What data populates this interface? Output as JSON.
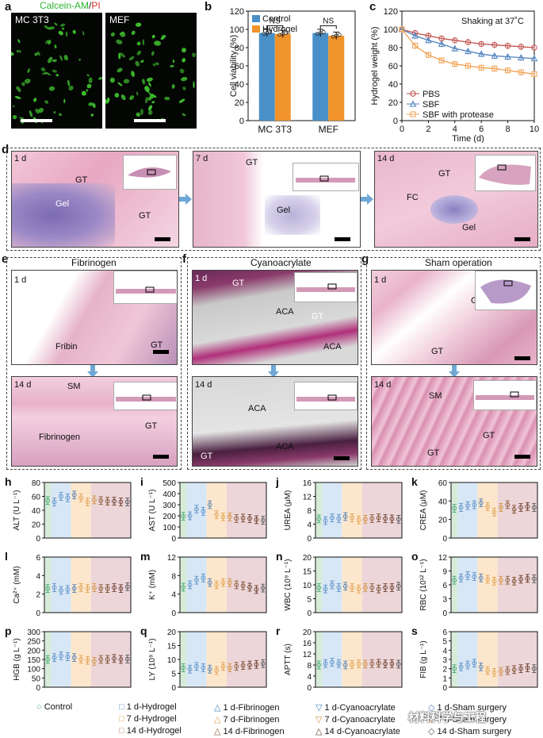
{
  "panels": {
    "a": {
      "label": "a",
      "title_left": "Calcein-AM",
      "title_sep": "/",
      "title_right": "PI",
      "img1": "MC 3T3",
      "img2": "MEF"
    },
    "b": {
      "label": "b"
    },
    "c": {
      "label": "c"
    },
    "d": {
      "label": "d",
      "img1": {
        "day": "1 d",
        "labels": [
          "GT",
          "Gel",
          "GT"
        ]
      },
      "img2": {
        "day": "7 d",
        "labels": [
          "GT",
          "Gel"
        ]
      },
      "img3": {
        "day": "14 d",
        "labels": [
          "GT",
          "FC",
          "Gel"
        ]
      }
    },
    "e": {
      "label": "e",
      "title": "Fibrinogen",
      "top": {
        "day": "1 d",
        "labels": [
          "Fribin",
          "GT"
        ]
      },
      "bottom": {
        "day": "14 d",
        "labels": [
          "SM",
          "Fibrinogen",
          "GT"
        ]
      }
    },
    "f": {
      "label": "f",
      "title": "Cyanoacrylate",
      "top": {
        "day": "1 d",
        "labels": [
          "GT",
          "ACA",
          "GT",
          "ACA"
        ]
      },
      "bottom": {
        "day": "14 d",
        "labels": [
          "ACA",
          "GT",
          "ACA"
        ]
      }
    },
    "g": {
      "label": "g",
      "title": "Sham operation",
      "top": {
        "day": "1 d",
        "labels": [
          "GT",
          "GT"
        ]
      },
      "bottom": {
        "day": "14 d",
        "labels": [
          "SM",
          "GT",
          "GT"
        ]
      }
    }
  },
  "chart_data": [
    {
      "id": "b",
      "type": "bar",
      "categories": [
        "MC 3T3",
        "MEF"
      ],
      "series": [
        {
          "name": "Control",
          "color": "#4a90c8",
          "values": [
            96,
            96
          ]
        },
        {
          "name": "Hydrogel",
          "color": "#f0932b",
          "values": [
            95,
            93
          ]
        }
      ],
      "ylabel": "Cell viability (%)",
      "ylim": [
        0,
        120
      ],
      "yticks": [
        0,
        20,
        40,
        60,
        80,
        100,
        120
      ],
      "annotations": [
        "NS",
        "NS"
      ],
      "legend": "top-left"
    },
    {
      "id": "c",
      "type": "line",
      "title": "Shaking at 37˚C",
      "x": [
        0,
        1,
        2,
        3,
        4,
        5,
        6,
        7,
        8,
        9,
        10
      ],
      "series": [
        {
          "name": "PBS",
          "color": "#c0504d",
          "marker": "circle",
          "values": [
            100,
            96,
            93,
            90,
            88,
            86,
            84,
            83,
            82,
            81,
            80
          ]
        },
        {
          "name": "SBF",
          "color": "#4f81bd",
          "marker": "triangle",
          "values": [
            100,
            93,
            88,
            84,
            79,
            76,
            73,
            71,
            70,
            69,
            68
          ]
        },
        {
          "name": "SBF with protease",
          "color": "#f0a050",
          "marker": "square",
          "values": [
            100,
            82,
            72,
            66,
            62,
            60,
            58,
            57,
            55,
            53,
            51
          ]
        }
      ],
      "xlabel": "Time (d)",
      "ylabel": "Hydrogel weight (%)",
      "xlim": [
        0,
        10
      ],
      "ylim": [
        0,
        120
      ],
      "xticks": [
        0,
        2,
        4,
        6,
        8,
        10
      ],
      "yticks": [
        0,
        20,
        40,
        60,
        80,
        100,
        120
      ],
      "legend": "bottom-left"
    }
  ],
  "blood": {
    "groups": [
      "Control",
      "1 d-Hydrogel",
      "7 d-Hydrogel",
      "14 d-Hydrogel",
      "1 d-Fibrinogen",
      "7 d-Fibrinogen",
      "14 d-Fibrinogen",
      "1 d-Cyanoacrylate",
      "7 d-Cyanoacrylate",
      "14 d-Cyanoacrylate",
      "1 d-Sham surgery",
      "7 d-Sham surgery",
      "14 d-Sham surgery"
    ],
    "group_colors": [
      "#4aa874",
      "#5b8fc7",
      "#5b8fc7",
      "#5b8fc7",
      "#4f7fb7",
      "#e0a050",
      "#e0a050",
      "#d4913a",
      "#8a5a3a",
      "#7a4a2a",
      "#6a3a2a",
      "#6a3a2a",
      "#555555"
    ],
    "panels": [
      {
        "label": "h",
        "ylabel": "ALT (U L⁻¹)",
        "ylim": [
          0,
          80
        ],
        "yticks": [
          0,
          20,
          40,
          60,
          80
        ],
        "values": [
          54,
          52,
          60,
          58,
          62,
          58,
          52,
          55,
          54,
          53,
          53,
          52,
          52
        ]
      },
      {
        "label": "i",
        "ylabel": "AST (U L⁻¹)",
        "ylim": [
          0,
          500
        ],
        "yticks": [
          0,
          100,
          200,
          300,
          400,
          500
        ],
        "values": [
          195,
          200,
          260,
          240,
          300,
          210,
          190,
          190,
          175,
          180,
          175,
          165,
          160
        ]
      },
      {
        "label": "j",
        "ylabel": "UREA (μM)",
        "ylim": [
          0,
          16
        ],
        "yticks": [
          0,
          4,
          8,
          12,
          16
        ],
        "values": [
          5.5,
          5,
          5.8,
          5.6,
          6.2,
          5.8,
          5.2,
          5.4,
          5.6,
          5.8,
          5.6,
          5.5,
          5.4
        ]
      },
      {
        "label": "k",
        "ylabel": "CREA (μM)",
        "ylim": [
          0,
          60
        ],
        "yticks": [
          0,
          20,
          40,
          60
        ],
        "values": [
          32,
          33,
          35,
          36,
          38,
          34,
          28,
          33,
          36,
          31,
          33,
          34,
          33
        ]
      },
      {
        "label": "l",
        "ylabel": "Ca²⁺ (mM)",
        "ylim": [
          0,
          6
        ],
        "yticks": [
          0,
          2,
          4,
          6
        ],
        "values": [
          2.6,
          2.7,
          2.4,
          2.5,
          2.6,
          2.7,
          2.6,
          2.7,
          2.6,
          2.6,
          2.7,
          2.6,
          2.8
        ]
      },
      {
        "label": "m",
        "ylabel": "K⁺ (mM)",
        "ylim": [
          0,
          12
        ],
        "yticks": [
          0,
          4,
          8,
          12
        ],
        "values": [
          5.5,
          6,
          7,
          7.5,
          6.5,
          6,
          6.5,
          6.5,
          6,
          5.8,
          5.5,
          5,
          5.3
        ]
      },
      {
        "label": "n",
        "ylabel": "WBC (10⁹ L⁻¹)",
        "ylim": [
          0,
          20
        ],
        "yticks": [
          0,
          5,
          10,
          15,
          20
        ],
        "values": [
          9,
          8.5,
          10,
          9,
          9.5,
          9,
          8.5,
          9,
          9,
          8.5,
          9,
          9,
          9.5
        ]
      },
      {
        "label": "o",
        "ylabel": "RBC (10¹² L⁻¹)",
        "ylim": [
          0,
          12
        ],
        "yticks": [
          0,
          3,
          6,
          9,
          12
        ],
        "values": [
          7,
          7.5,
          8,
          7.8,
          7.5,
          7.2,
          6.8,
          7,
          7,
          6.8,
          7.2,
          7.4,
          7.3
        ]
      },
      {
        "label": "p",
        "ylabel": "HGB (g L⁻¹)",
        "ylim": [
          0,
          300
        ],
        "yticks": [
          0,
          50,
          100,
          150,
          200,
          250,
          300
        ],
        "values": [
          150,
          160,
          170,
          165,
          160,
          150,
          145,
          140,
          150,
          150,
          155,
          150,
          152
        ]
      },
      {
        "label": "q",
        "ylabel": "LY (10⁹ L⁻¹)",
        "ylim": [
          0,
          20
        ],
        "yticks": [
          0,
          5,
          10,
          15,
          20
        ],
        "values": [
          7,
          6.5,
          7.5,
          7,
          6.5,
          6,
          7.5,
          7,
          7.5,
          7.8,
          8,
          8.2,
          8.5
        ]
      },
      {
        "label": "r",
        "ylabel": "APTT (s)",
        "ylim": [
          0,
          20
        ],
        "yticks": [
          0,
          4,
          8,
          12,
          16,
          20
        ],
        "values": [
          8,
          8.5,
          9,
          8.5,
          8,
          8.2,
          8.4,
          8.3,
          8.5,
          8.6,
          8.4,
          8.5,
          8.3
        ]
      },
      {
        "label": "s",
        "ylabel": "FIB (g L⁻¹)",
        "ylim": [
          0,
          6
        ],
        "yticks": [
          0,
          1,
          2,
          3,
          4,
          5,
          6
        ],
        "values": [
          2,
          2.2,
          2.4,
          2.6,
          2.2,
          1.8,
          1.6,
          1.7,
          1.8,
          1.9,
          2,
          2.1,
          2
        ]
      }
    ]
  },
  "legend_blood": {
    "col1": [
      "Control"
    ],
    "col2": [
      "1 d-Hydrogel",
      "7 d-Hydrogel",
      "14 d-Hydrogel"
    ],
    "col3": [
      "1 d-Fibrinogen",
      "7 d-Fibrinogen",
      "14 d-Fibrinogen"
    ],
    "col4": [
      "1 d-Cyanoacrylate",
      "7 d-Cyanoacrylate",
      "14 d-Cyanoacrylate"
    ],
    "col5": [
      "1 d-Sham surgery",
      "7 d-Sham surgery",
      "14 d-Sham surgery"
    ]
  },
  "watermark": "材料科学与工程"
}
